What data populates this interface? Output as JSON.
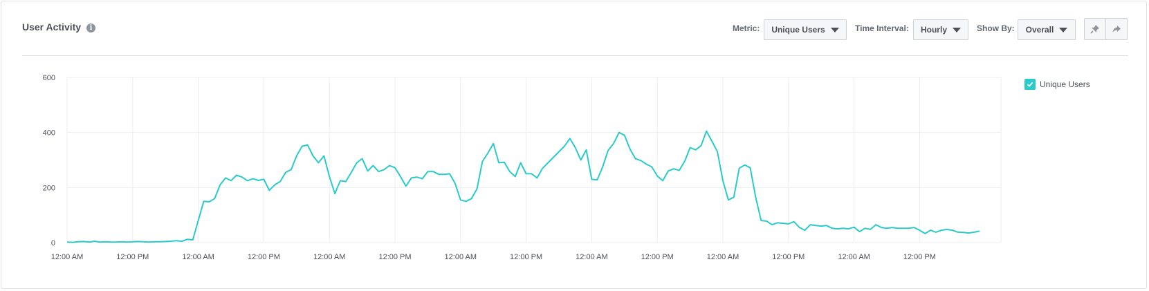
{
  "header": {
    "title": "User Activity",
    "info_icon": "info-icon"
  },
  "controls": {
    "metric_label": "Metric:",
    "metric_value": "Unique Users",
    "interval_label": "Time Interval:",
    "interval_value": "Hourly",
    "showby_label": "Show By:",
    "showby_value": "Overall",
    "pin_icon": "pin-icon",
    "share_icon": "share-icon"
  },
  "legend": {
    "label": "Unique Users",
    "checked": true,
    "color": "#2bcaca"
  },
  "chart_data": {
    "type": "line",
    "ylim": [
      0,
      600
    ],
    "yticks": [
      0,
      200,
      400,
      600
    ],
    "xtick_labels": [
      "12:00 AM",
      "12:00 PM",
      "12:00 AM",
      "12:00 PM",
      "12:00 AM",
      "12:00 PM",
      "12:00 AM",
      "12:00 PM",
      "12:00 AM",
      "12:00 PM",
      "12:00 AM",
      "12:00 PM",
      "12:00 AM",
      "12:00 PM"
    ],
    "x_interval_hours": 1,
    "grid": true,
    "legend_position": "top-right",
    "series": [
      {
        "name": "Unique Users",
        "color": "#2bcaca",
        "values": [
          2,
          1,
          3,
          4,
          2,
          5,
          2,
          3,
          2,
          2,
          3,
          2,
          3,
          4,
          3,
          2,
          3,
          3,
          4,
          5,
          7,
          5,
          12,
          10,
          80,
          150,
          148,
          160,
          210,
          235,
          225,
          245,
          238,
          225,
          232,
          226,
          230,
          190,
          210,
          222,
          255,
          265,
          315,
          350,
          355,
          315,
          290,
          315,
          240,
          178,
          225,
          222,
          255,
          290,
          305,
          260,
          280,
          258,
          265,
          280,
          272,
          240,
          205,
          235,
          238,
          232,
          258,
          258,
          248,
          248,
          250,
          215,
          155,
          150,
          160,
          195,
          295,
          325,
          360,
          290,
          292,
          258,
          240,
          290,
          250,
          250,
          235,
          270,
          290,
          310,
          330,
          350,
          378,
          345,
          300,
          337,
          230,
          228,
          275,
          335,
          360,
          400,
          390,
          340,
          305,
          298,
          285,
          275,
          242,
          225,
          260,
          268,
          262,
          295,
          345,
          337,
          352,
          405,
          368,
          330,
          225,
          155,
          165,
          270,
          282,
          272,
          165,
          80,
          78,
          65,
          72,
          70,
          68,
          76,
          55,
          45,
          65,
          62,
          60,
          62,
          52,
          50,
          52,
          50,
          56,
          40,
          52,
          48,
          65,
          55,
          52,
          55,
          52,
          52,
          52,
          55,
          45,
          33,
          45,
          38,
          45,
          48,
          45,
          38,
          37,
          35,
          38,
          42
        ]
      }
    ]
  }
}
